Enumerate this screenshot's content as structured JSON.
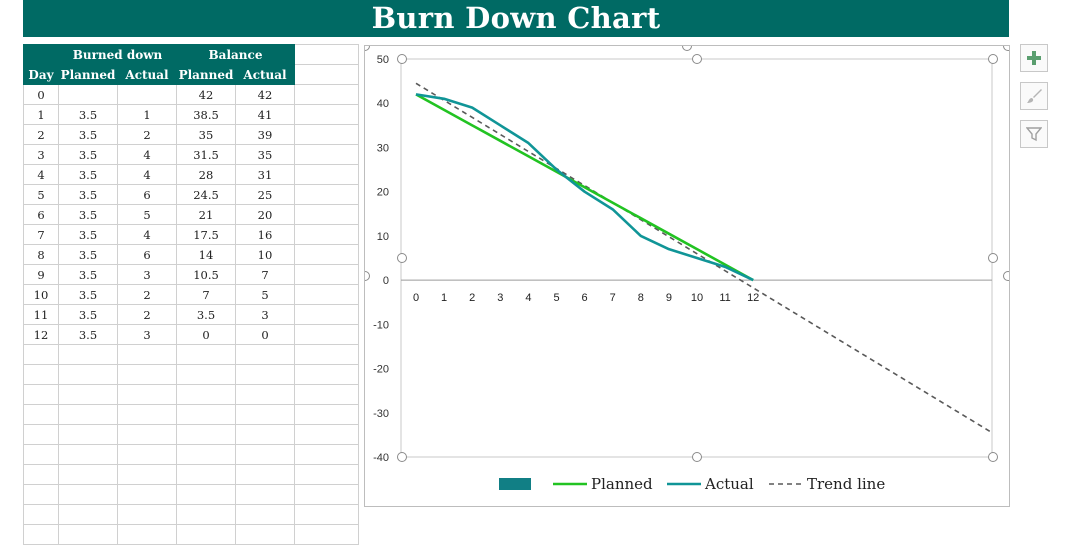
{
  "title": "Burn Down Chart",
  "table": {
    "group_headers": [
      "Burned down",
      "Balance"
    ],
    "col_headers": [
      "Day",
      "Planned",
      "Actual",
      "Planned",
      "Actual"
    ],
    "rows": [
      [
        "0",
        "",
        "",
        "42",
        "42"
      ],
      [
        "1",
        "3.5",
        "1",
        "38.5",
        "41"
      ],
      [
        "2",
        "3.5",
        "2",
        "35",
        "39"
      ],
      [
        "3",
        "3.5",
        "4",
        "31.5",
        "35"
      ],
      [
        "4",
        "3.5",
        "4",
        "28",
        "31"
      ],
      [
        "5",
        "3.5",
        "6",
        "24.5",
        "25"
      ],
      [
        "6",
        "3.5",
        "5",
        "21",
        "20"
      ],
      [
        "7",
        "3.5",
        "4",
        "17.5",
        "16"
      ],
      [
        "8",
        "3.5",
        "6",
        "14",
        "10"
      ],
      [
        "9",
        "3.5",
        "3",
        "10.5",
        "7"
      ],
      [
        "10",
        "3.5",
        "2",
        "7",
        "5"
      ],
      [
        "11",
        "3.5",
        "2",
        "3.5",
        "3"
      ],
      [
        "12",
        "3.5",
        "3",
        "0",
        "0"
      ]
    ]
  },
  "chart_data": {
    "type": "line",
    "x": [
      0,
      1,
      2,
      3,
      4,
      5,
      6,
      7,
      8,
      9,
      10,
      11,
      12
    ],
    "series": [
      {
        "name": "Planned",
        "values": [
          42,
          38.5,
          35,
          31.5,
          28,
          24.5,
          21,
          17.5,
          14,
          10.5,
          7,
          3.5,
          0
        ],
        "color": "#22c322"
      },
      {
        "name": "Actual",
        "values": [
          42,
          41,
          39,
          35,
          31,
          25,
          20,
          16,
          10,
          7,
          5,
          3,
          0
        ],
        "color": "#109597"
      }
    ],
    "trend": {
      "name": "Trend line",
      "x": [
        0,
        20.5
      ],
      "y": [
        44.5,
        -34.5
      ],
      "color": "#595959"
    },
    "ylim": [
      -40,
      50
    ],
    "yticks": [
      50,
      40,
      30,
      20,
      10,
      0,
      -10,
      -20,
      -30,
      -40
    ],
    "xlim": [
      0,
      20.5
    ],
    "grid": false,
    "legend": "bottom",
    "legend_items": [
      "Planned",
      "Actual",
      "Trend line"
    ]
  },
  "side_buttons": {
    "add": "chart-elements",
    "style": "chart-styles",
    "filter": "chart-filters"
  }
}
